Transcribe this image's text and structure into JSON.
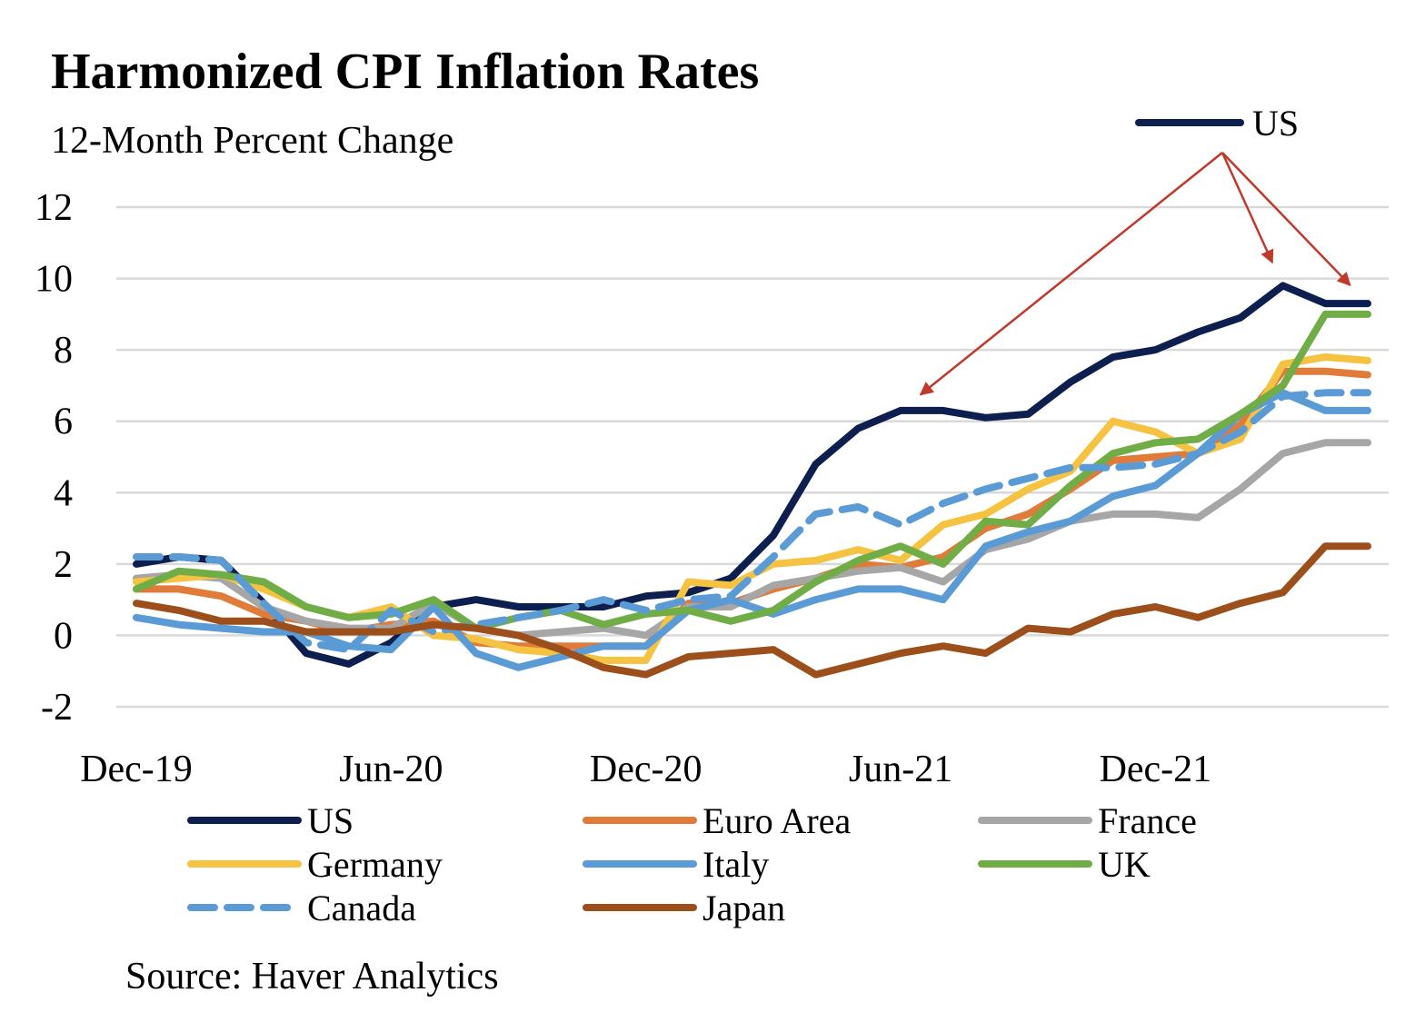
{
  "chart_data": {
    "type": "line",
    "title": "Harmonized CPI Inflation Rates",
    "subtitle": "12-Month Percent Change",
    "source": "Source: Haver Analytics",
    "ylim": [
      -2,
      12
    ],
    "y_ticks": [
      -2,
      0,
      2,
      4,
      6,
      8,
      10,
      12
    ],
    "x_tick_labels": [
      {
        "label": "Dec-19",
        "index": 0
      },
      {
        "label": "Jun-20",
        "index": 6
      },
      {
        "label": "Dec-20",
        "index": 12
      },
      {
        "label": "Jun-21",
        "index": 18
      },
      {
        "label": "Dec-21",
        "index": 24
      }
    ],
    "grid": true,
    "legend_position": "bottom",
    "x": [
      "Dec-19",
      "Jan-20",
      "Feb-20",
      "Mar-20",
      "Apr-20",
      "May-20",
      "Jun-20",
      "Jul-20",
      "Aug-20",
      "Sep-20",
      "Oct-20",
      "Nov-20",
      "Dec-20",
      "Jan-21",
      "Feb-21",
      "Mar-21",
      "Apr-21",
      "May-21",
      "Jun-21",
      "Jul-21",
      "Aug-21",
      "Sep-21",
      "Oct-21",
      "Nov-21",
      "Dec-21",
      "Jan-22",
      "Feb-22",
      "Mar-22",
      "Apr-22",
      "May-22"
    ],
    "series": [
      {
        "name": "US",
        "color": "#0d1f4f",
        "dashed": false,
        "values": [
          2.0,
          2.2,
          2.1,
          0.9,
          -0.5,
          -0.8,
          -0.2,
          0.8,
          1.0,
          0.8,
          0.8,
          0.8,
          1.1,
          1.2,
          1.6,
          2.8,
          4.8,
          5.8,
          6.3,
          6.3,
          6.1,
          6.2,
          7.1,
          7.8,
          8.0,
          8.5,
          8.9,
          9.8,
          9.3,
          9.3
        ]
      },
      {
        "name": "Euro Area",
        "color": "#e07b39",
        "dashed": false,
        "values": [
          1.3,
          1.3,
          1.1,
          0.6,
          0.4,
          0.1,
          0.3,
          0.4,
          -0.2,
          -0.3,
          -0.3,
          -0.3,
          -0.3,
          0.9,
          0.9,
          1.3,
          1.6,
          2.0,
          1.9,
          2.2,
          3.0,
          3.4,
          4.1,
          4.9,
          5.0,
          5.1,
          5.9,
          7.4,
          7.4,
          7.3
        ]
      },
      {
        "name": "France",
        "color": "#a6a6a6",
        "dashed": false,
        "values": [
          1.6,
          1.7,
          1.6,
          0.8,
          0.4,
          0.2,
          0.2,
          0.9,
          0.2,
          0.0,
          0.1,
          0.2,
          0.0,
          0.8,
          0.8,
          1.4,
          1.6,
          1.8,
          1.9,
          1.5,
          2.4,
          2.7,
          3.2,
          3.4,
          3.4,
          3.3,
          4.1,
          5.1,
          5.4,
          5.4
        ]
      },
      {
        "name": "Germany",
        "color": "#f5c242",
        "dashed": false,
        "values": [
          1.5,
          1.6,
          1.7,
          1.3,
          0.8,
          0.5,
          0.8,
          0.0,
          -0.1,
          -0.4,
          -0.5,
          -0.7,
          -0.7,
          1.5,
          1.4,
          2.0,
          2.1,
          2.4,
          2.1,
          3.1,
          3.4,
          4.1,
          4.6,
          6.0,
          5.7,
          5.1,
          5.5,
          7.6,
          7.8,
          7.7
        ]
      },
      {
        "name": "Italy",
        "color": "#5b9bd5",
        "dashed": false,
        "values": [
          0.5,
          0.3,
          0.2,
          0.1,
          0.1,
          -0.3,
          -0.4,
          0.8,
          -0.5,
          -0.9,
          -0.6,
          -0.3,
          -0.3,
          0.7,
          1.0,
          0.6,
          1.0,
          1.3,
          1.3,
          1.0,
          2.5,
          2.9,
          3.2,
          3.9,
          4.2,
          5.1,
          6.2,
          6.8,
          6.3,
          6.3
        ]
      },
      {
        "name": "UK",
        "color": "#70ad47",
        "dashed": false,
        "values": [
          1.3,
          1.8,
          1.7,
          1.5,
          0.8,
          0.5,
          0.6,
          1.0,
          0.2,
          0.5,
          0.7,
          0.3,
          0.6,
          0.7,
          0.4,
          0.7,
          1.5,
          2.1,
          2.5,
          2.0,
          3.2,
          3.1,
          4.2,
          5.1,
          5.4,
          5.5,
          6.2,
          7.0,
          9.0,
          9.0
        ]
      },
      {
        "name": "Canada",
        "color": "#5b9bd5",
        "dashed": true,
        "values": [
          2.2,
          2.2,
          2.1,
          0.9,
          -0.2,
          -0.4,
          0.7,
          0.1,
          0.3,
          0.5,
          0.7,
          1.0,
          0.7,
          1.0,
          1.1,
          2.2,
          3.4,
          3.6,
          3.1,
          3.7,
          4.1,
          4.4,
          4.7,
          4.7,
          4.8,
          5.1,
          5.7,
          6.7,
          6.8,
          6.8
        ]
      },
      {
        "name": "Japan",
        "color": "#9c4f1a",
        "dashed": false,
        "values": [
          0.9,
          0.7,
          0.4,
          0.4,
          0.1,
          0.1,
          0.1,
          0.3,
          0.2,
          0.0,
          -0.4,
          -0.9,
          -1.1,
          -0.6,
          -0.5,
          -0.4,
          -1.1,
          -0.8,
          -0.5,
          -0.3,
          -0.5,
          0.2,
          0.1,
          0.6,
          0.8,
          0.5,
          0.9,
          1.2,
          2.5,
          2.5
        ]
      }
    ],
    "annotation": {
      "label": "US",
      "targets": [
        18,
        27,
        29
      ]
    }
  }
}
